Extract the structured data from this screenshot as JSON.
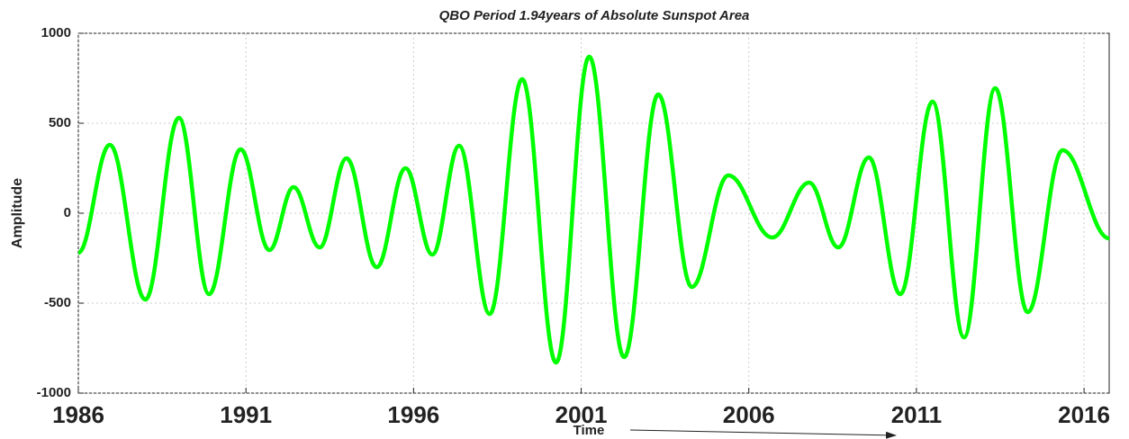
{
  "chart_data": {
    "type": "line",
    "title": "QBO Period 1.94years of  Absolute Sunspot Area",
    "xlabel": "Time",
    "ylabel": "Amplitude",
    "x": [
      1986,
      1986.94,
      1988.0,
      1989.0,
      1989.9,
      1990.84,
      1991.7,
      1992.42,
      1993.2,
      1994.0,
      1994.9,
      1995.76,
      1996.56,
      1997.36,
      1998.27,
      1999.24,
      2000.25,
      2001.24,
      2002.28,
      2003.3,
      2004.3,
      2005.39,
      2006.7,
      2007.8,
      2008.67,
      2009.58,
      2010.52,
      2011.48,
      2012.42,
      2013.35,
      2014.32,
      2015.36,
      2016.75
    ],
    "series": [
      {
        "name": "QBO",
        "color": "#00ff00",
        "values": [
          -220,
          380,
          -480,
          530,
          -450,
          355,
          -205,
          145,
          -190,
          305,
          -300,
          250,
          -230,
          375,
          -560,
          745,
          -830,
          870,
          -800,
          660,
          -410,
          210,
          -135,
          170,
          -190,
          310,
          -450,
          620,
          -690,
          695,
          -550,
          350,
          -140
        ]
      }
    ],
    "xlim": [
      1986,
      2016.75
    ],
    "xticks": [
      1986,
      1991,
      1996,
      2001,
      2006,
      2011,
      2016
    ],
    "ylim": [
      -1000,
      1000
    ],
    "yticks": [
      -1000,
      -500,
      0,
      500,
      1000
    ],
    "grid": true
  }
}
